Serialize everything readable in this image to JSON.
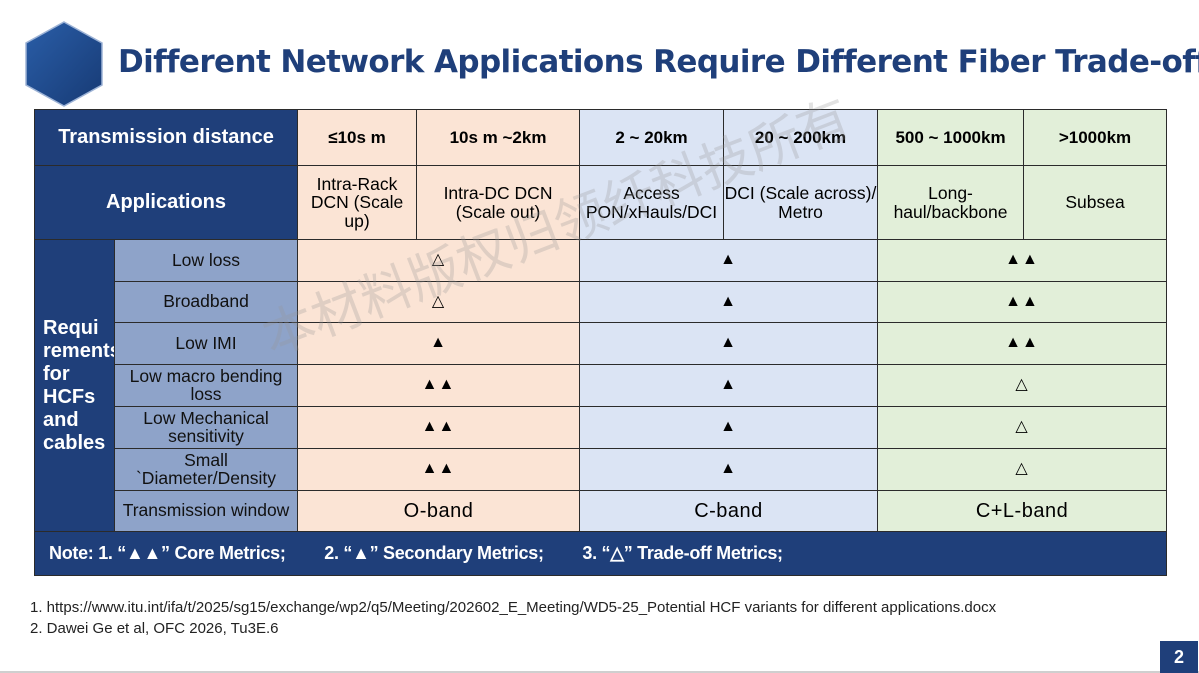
{
  "title": "Different Network Applications Require Different Fiber Trade-offs",
  "table": {
    "distance_label": "Transmission distance",
    "distances": [
      "≤10s m",
      "10s m ~2km",
      "2 ~ 20km",
      "20 ~ 200km",
      "500 ~ 1000km",
      ">1000km"
    ],
    "applications_label": "Applications",
    "applications": [
      "Intra-Rack DCN (Scale up)",
      "Intra-DC DCN (Scale out)",
      "Access PON/xHauls/DCI",
      "DCI (Scale across)/ Metro",
      "Long-haul/backbone",
      "Subsea"
    ],
    "requirements_label": "Requi rements for HCFs and cables",
    "rows": [
      {
        "name": "Low loss",
        "values": [
          "△",
          "▲",
          "▲▲"
        ]
      },
      {
        "name": "Broadband",
        "values": [
          "△",
          "▲",
          "▲▲"
        ]
      },
      {
        "name": "Low IMI",
        "values": [
          "▲",
          "▲",
          "▲▲"
        ]
      },
      {
        "name": "Low macro bending loss",
        "values": [
          "▲▲",
          "▲",
          "△"
        ]
      },
      {
        "name": "Low Mechanical sensitivity",
        "values": [
          "▲▲",
          "▲",
          "△"
        ]
      },
      {
        "name": "Small `Diameter/Density",
        "values": [
          "▲▲",
          "▲",
          "△"
        ]
      }
    ],
    "window_label": "Transmission window",
    "windows": [
      "O-band",
      "C-band",
      "C+L-band"
    ],
    "note": {
      "item1": "Note: 1.  “▲▲” Core Metrics;",
      "item2": "2. “▲”  Secondary Metrics;",
      "item3": "3. “△”  Trade-off Metrics;"
    }
  },
  "references": [
    "1. https://www.itu.int/ifa/t/2025/sg15/exchange/wp2/q5/Meeting/202602_E_Meeting/WD5-25_Potential HCF variants for different applications.docx",
    "2. Dawei Ge et al, OFC 2026, Tu3E.6"
  ],
  "watermark": "本材料版权归领纤科技所有",
  "page_number": "2",
  "colors": {
    "primary": "#1f3f7a",
    "sub_header": "#8ea3c9",
    "peach": "#fbe4d5",
    "blue": "#dbe4f4",
    "green": "#e2efd9"
  },
  "icons": {
    "logo": "hexagon-logo-icon"
  }
}
